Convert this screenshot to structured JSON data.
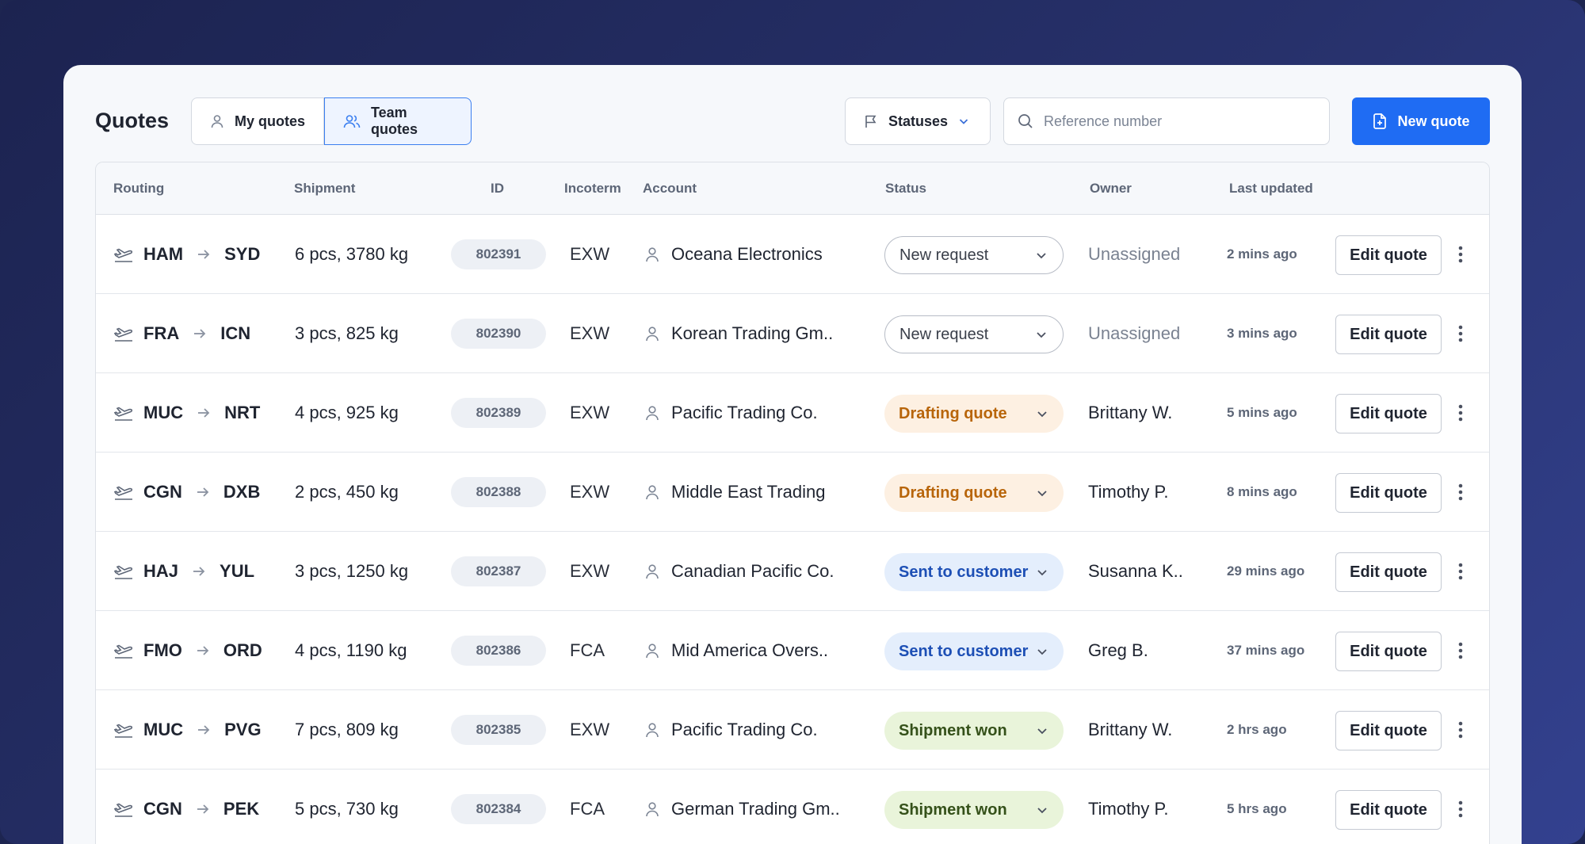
{
  "page": {
    "title": "Quotes"
  },
  "toolbar": {
    "tabs": [
      {
        "label": "My quotes",
        "icon": "user-icon"
      },
      {
        "label": "Team quotes",
        "icon": "users-icon",
        "active": true
      }
    ],
    "statuses_label": "Statuses",
    "search_placeholder": "Reference number",
    "search_value": "",
    "new_quote_label": "New quote"
  },
  "table": {
    "columns": [
      "Routing",
      "Shipment",
      "ID",
      "Incoterm",
      "Account",
      "Status",
      "Owner",
      "Last updated"
    ],
    "edit_label": "Edit quote",
    "rows": [
      {
        "from": "HAM",
        "to": "SYD",
        "shipment": "6 pcs, 3780 kg",
        "id": "802391",
        "incoterm": "EXW",
        "account": "Oceana Electronics",
        "status": "New request",
        "status_kind": "new",
        "owner": "Unassigned",
        "updated": "2 mins ago"
      },
      {
        "from": "FRA",
        "to": "ICN",
        "shipment": "3 pcs, 825 kg",
        "id": "802390",
        "incoterm": "EXW",
        "account": "Korean Trading Gm..",
        "status": "New request",
        "status_kind": "new",
        "owner": "Unassigned",
        "updated": "3 mins ago"
      },
      {
        "from": "MUC",
        "to": "NRT",
        "shipment": "4 pcs, 925 kg",
        "id": "802389",
        "incoterm": "EXW",
        "account": "Pacific Trading Co.",
        "status": "Drafting quote",
        "status_kind": "draft",
        "owner": "Brittany W.",
        "updated": "5 mins ago"
      },
      {
        "from": "CGN",
        "to": "DXB",
        "shipment": "2 pcs, 450 kg",
        "id": "802388",
        "incoterm": "EXW",
        "account": "Middle East Trading",
        "status": "Drafting quote",
        "status_kind": "draft",
        "owner": "Timothy P.",
        "updated": "8 mins ago"
      },
      {
        "from": "HAJ",
        "to": "YUL",
        "shipment": "3 pcs, 1250 kg",
        "id": "802387",
        "incoterm": "EXW",
        "account": "Canadian Pacific Co.",
        "status": "Sent to customer",
        "status_kind": "sent",
        "owner": "Susanna K..",
        "updated": "29 mins ago"
      },
      {
        "from": "FMO",
        "to": "ORD",
        "shipment": "4 pcs, 1190 kg",
        "id": "802386",
        "incoterm": "FCA",
        "account": "Mid America Overs..",
        "status": "Sent to customer",
        "status_kind": "sent",
        "owner": "Greg B.",
        "updated": "37 mins ago"
      },
      {
        "from": "MUC",
        "to": "PVG",
        "shipment": "7 pcs, 809 kg",
        "id": "802385",
        "incoterm": "EXW",
        "account": "Pacific Trading Co.",
        "status": "Shipment won",
        "status_kind": "won",
        "owner": "Brittany W.",
        "updated": "2 hrs ago"
      },
      {
        "from": "CGN",
        "to": "PEK",
        "shipment": "5 pcs, 730 kg",
        "id": "802384",
        "incoterm": "FCA",
        "account": "German Trading Gm..",
        "status": "Shipment won",
        "status_kind": "won",
        "owner": "Timothy P.",
        "updated": "5 hrs ago"
      }
    ]
  },
  "colors": {
    "accent": "#1f6cf3",
    "status_new": "#ffffff",
    "status_draft": "#fdf0e2",
    "status_sent": "#e4eefc",
    "status_won": "#e9f4da"
  }
}
